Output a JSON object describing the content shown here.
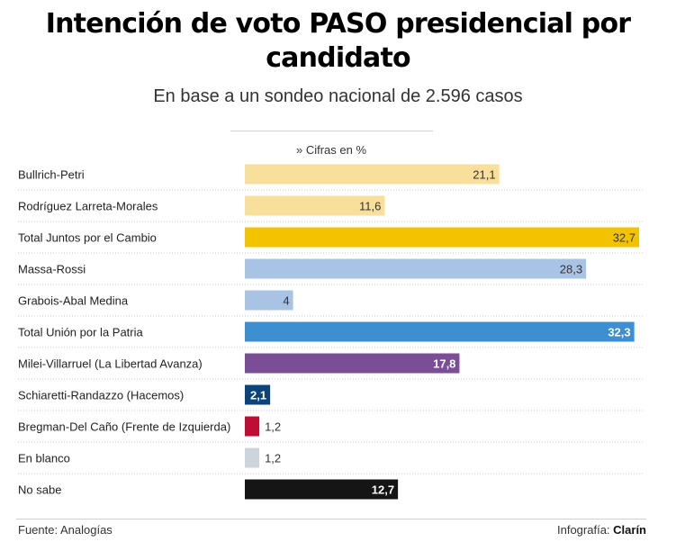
{
  "title": "Intención de voto PASO presidencial por candidato",
  "subtitle": "En base a un sondeo nacional de 2.596 casos",
  "unit_note": "» Cifras en %",
  "source": "Fuente: Analogías",
  "credit_prefix": "Infografía: ",
  "credit_brand": "Clarín",
  "chart_data": {
    "type": "bar",
    "orientation": "horizontal",
    "title": "Intención de voto PASO presidencial por candidato",
    "subtitle": "En base a un sondeo nacional de 2.596 casos",
    "xlabel": "Cifras en %",
    "ylabel": "",
    "xlim": [
      0,
      32.7
    ],
    "grid": false,
    "categories": [
      "Bullrich-Petri",
      "Rodríguez Larreta-Morales",
      "Total Juntos por el Cambio",
      "Massa-Rossi",
      "Grabois-Abal Medina",
      "Total Unión por la Patria",
      "Milei-Villarruel (La Libertad Avanza)",
      "Schiaretti-Randazzo (Hacemos)",
      "Bregman-Del Caño (Frente de Izquierda)",
      "En blanco",
      "No sabe"
    ],
    "values": [
      21.1,
      11.6,
      32.7,
      28.3,
      4,
      32.3,
      17.8,
      2.1,
      1.2,
      1.2,
      12.7
    ],
    "value_labels": [
      "21,1",
      "11,6",
      "32,7",
      "28,3",
      "4",
      "32,3",
      "17,8",
      "2,1",
      "1,2",
      "1,2",
      "12,7"
    ],
    "colors": [
      "#f9df9c",
      "#f9df9c",
      "#f4c300",
      "#a9c3e4",
      "#a9c3e4",
      "#3d8fd1",
      "#7a4d96",
      "#0c4479",
      "#c00d33",
      "#cdd5dc",
      "#151515"
    ],
    "label_colors": [
      "#333333",
      "#333333",
      "#333333",
      "#333333",
      "#333333",
      "#ffffff",
      "#ffffff",
      "#ffffff",
      "#333333",
      "#333333",
      "#ffffff"
    ]
  }
}
